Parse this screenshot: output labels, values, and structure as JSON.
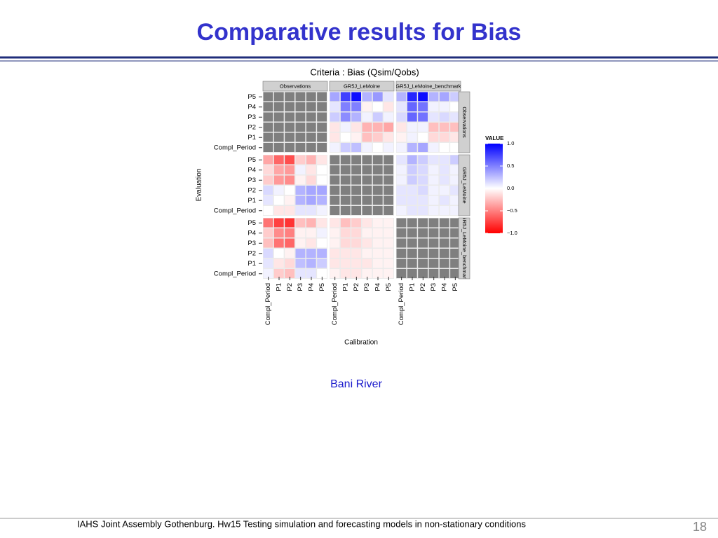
{
  "slide_title": "Comparative results for Bias",
  "caption": "Bani River",
  "footer": "IAHS Joint Assembly Gothenburg. Hw15 Testing simulation and forecasting models in non-stationary conditions",
  "page_number": "18",
  "chart_data": {
    "type": "heatmap",
    "title": "Criteria : Bias (Qsim/Qobs)",
    "xlabel": "Calibration",
    "ylabel": "Evaluation",
    "facets": [
      "Observations",
      "GR5J_LeMoine",
      "GR5J_LeMoine_benchmark"
    ],
    "categories": [
      "Compl_Period",
      "P1",
      "P2",
      "P3",
      "P4",
      "P5"
    ],
    "legend_title": "VALUE",
    "zlim": [
      -1,
      1
    ],
    "zticks": [
      {
        "value": 1,
        "label": "1.0"
      },
      {
        "value": 0.5,
        "label": "0.5"
      },
      {
        "value": 0,
        "label": "0.0"
      },
      {
        "value": -0.5,
        "label": "−0.5"
      },
      {
        "value": -1,
        "label": "−1.0"
      }
    ],
    "low_color": "#ff0000",
    "mid_color": "#ffffff",
    "high_color": "#0000ff",
    "na_color": "#7f7f7f",
    "values": [
      [
        [
          [
            null,
            null,
            null,
            null,
            null,
            null
          ],
          [
            null,
            null,
            null,
            null,
            null,
            null
          ],
          [
            null,
            null,
            null,
            null,
            null,
            null
          ],
          [
            null,
            null,
            null,
            null,
            null,
            null
          ],
          [
            null,
            null,
            null,
            null,
            null,
            null
          ],
          [
            null,
            null,
            null,
            null,
            null,
            null
          ]
        ],
        [
          [
            0.05,
            0.2,
            0.25,
            0.05,
            0,
            0.05
          ],
          [
            -0.1,
            0,
            -0.05,
            -0.25,
            -0.2,
            -0.1
          ],
          [
            -0.1,
            0.05,
            -0.1,
            -0.3,
            -0.3,
            -0.35
          ],
          [
            0.2,
            0.45,
            0.3,
            0.05,
            0.2,
            0.05
          ],
          [
            0.1,
            0.5,
            0.5,
            -0.05,
            0,
            -0.1
          ],
          [
            0.35,
            0.75,
            0.95,
            0.3,
            0.4,
            0.1
          ]
        ],
        [
          [
            0.05,
            0.3,
            0.35,
            0.05,
            0,
            0
          ],
          [
            -0.05,
            0.05,
            0,
            -0.15,
            -0.15,
            -0.1
          ],
          [
            -0.1,
            0.05,
            0.05,
            -0.25,
            -0.25,
            -0.25
          ],
          [
            0.15,
            0.6,
            0.55,
            0.1,
            0.15,
            0.1
          ],
          [
            0.1,
            0.6,
            0.55,
            0.05,
            0.05,
            0
          ],
          [
            0.3,
            0.85,
            0.95,
            0.3,
            0.35,
            0.2
          ]
        ]
      ],
      [
        [
          [
            0,
            -0.1,
            -0.1,
            0.1,
            0.1,
            0.05
          ],
          [
            0.1,
            0,
            -0.05,
            0.3,
            0.35,
            0.3
          ],
          [
            0.15,
            0.05,
            0,
            0.3,
            0.35,
            0.35
          ],
          [
            -0.2,
            -0.4,
            -0.45,
            -0.05,
            -0.15,
            0
          ],
          [
            -0.15,
            -0.35,
            -0.4,
            0.05,
            -0.1,
            0
          ],
          [
            -0.35,
            -0.6,
            -0.7,
            -0.2,
            -0.3,
            -0.1
          ]
        ],
        [
          [
            null,
            null,
            null,
            null,
            null,
            null
          ],
          [
            null,
            null,
            null,
            null,
            null,
            null
          ],
          [
            null,
            null,
            null,
            null,
            null,
            null
          ],
          [
            null,
            null,
            null,
            null,
            null,
            null
          ],
          [
            null,
            null,
            null,
            null,
            null,
            null
          ],
          [
            null,
            null,
            null,
            null,
            null,
            null
          ]
        ],
        [
          [
            0.05,
            0.1,
            0.1,
            0.05,
            0.05,
            0.05
          ],
          [
            0.1,
            0.1,
            0.1,
            0.05,
            0.1,
            0.05
          ],
          [
            0.1,
            0.1,
            0.15,
            0.05,
            0.05,
            0.1
          ],
          [
            0.05,
            0.2,
            0.15,
            0.05,
            0.1,
            0.05
          ],
          [
            0.05,
            0.2,
            0.15,
            0.05,
            0.1,
            0.05
          ],
          [
            0.1,
            0.3,
            0.2,
            0.1,
            0.1,
            0.2
          ]
        ]
      ],
      [
        [
          [
            0.05,
            -0.2,
            -0.25,
            0.1,
            0.1,
            0
          ],
          [
            0.1,
            -0.1,
            -0.15,
            0.25,
            0.3,
            0.2
          ],
          [
            0.15,
            0,
            -0.05,
            0.3,
            0.3,
            0.3
          ],
          [
            -0.25,
            -0.55,
            -0.6,
            -0.05,
            -0.1,
            0
          ],
          [
            -0.2,
            -0.45,
            -0.5,
            -0.05,
            -0.05,
            0.05
          ],
          [
            -0.55,
            -0.75,
            -0.8,
            -0.25,
            -0.3,
            -0.1
          ]
        ],
        [
          [
            -0.05,
            -0.1,
            -0.1,
            -0.05,
            -0.05,
            -0.05
          ],
          [
            -0.1,
            -0.1,
            -0.1,
            -0.1,
            -0.05,
            -0.05
          ],
          [
            -0.1,
            -0.1,
            -0.1,
            -0.05,
            -0.05,
            -0.05
          ],
          [
            -0.05,
            -0.15,
            -0.15,
            -0.1,
            -0.05,
            -0.05
          ],
          [
            -0.05,
            -0.15,
            -0.15,
            -0.05,
            -0.05,
            -0.05
          ],
          [
            -0.1,
            -0.25,
            -0.2,
            -0.1,
            -0.05,
            -0.05
          ]
        ],
        [
          [
            null,
            null,
            null,
            null,
            null,
            null
          ],
          [
            null,
            null,
            null,
            null,
            null,
            null
          ],
          [
            null,
            null,
            null,
            null,
            null,
            null
          ],
          [
            null,
            null,
            null,
            null,
            null,
            null
          ],
          [
            null,
            null,
            null,
            null,
            null,
            null
          ],
          [
            null,
            null,
            null,
            null,
            null,
            null
          ]
        ]
      ]
    ]
  }
}
